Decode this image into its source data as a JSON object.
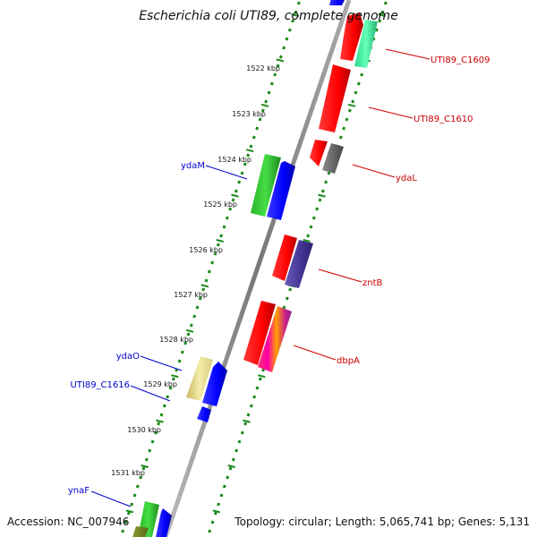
{
  "header": {
    "title": "Escherichia coli UTI89, complete genome"
  },
  "footer": {
    "accession": "Accession: NC_007946",
    "topology": "Topology: circular; Length: 5,065,741 bp; Genes: 5,131"
  },
  "scale": {
    "unit": "kbp",
    "ticks": [
      "1522 kbp",
      "1523 kbp",
      "1524 kbp",
      "1525 kbp",
      "1526 kbp",
      "1527 kbp",
      "1528 kbp",
      "1529 kbp",
      "1530 kbp",
      "1531 kbp"
    ]
  },
  "genes": {
    "reverse_strand_labels": [
      "UTI89_C1609",
      "UTI89_C1610",
      "ydaL",
      "zntB",
      "dbpA"
    ],
    "forward_strand_labels": [
      "ydaM",
      "ydaO",
      "UTI89_C1616",
      "ynaF"
    ]
  },
  "colors": {
    "forward_label": "#0000cc",
    "reverse_label": "#cc0000",
    "tick_dots": "#1a8a1a",
    "backbone": "#888888"
  }
}
